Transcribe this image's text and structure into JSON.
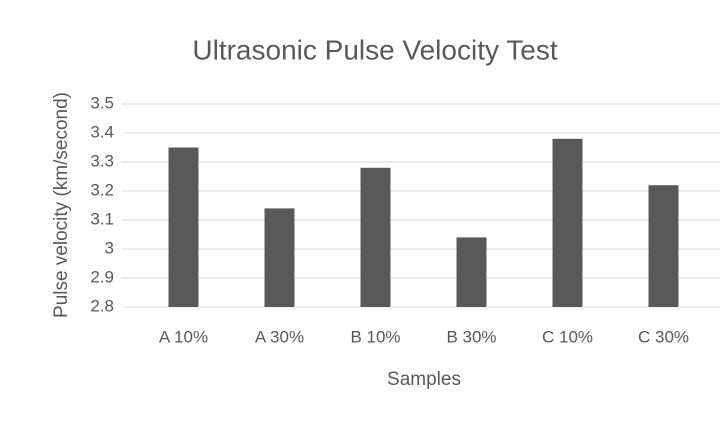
{
  "chart_data": {
    "type": "bar",
    "title": "Ultrasonic Pulse Velocity Test",
    "x_label": "Samples",
    "y_label": "Pulse velocity (km/second)",
    "categories": [
      "A 10%",
      "A 30%",
      "B 10%",
      "B 30%",
      "C 10%",
      "C 30%"
    ],
    "values": [
      3.35,
      3.14,
      3.28,
      3.04,
      3.38,
      3.22
    ],
    "color": "#595959",
    "ylim": [
      2.8,
      3.5
    ],
    "yticks": [
      2.8,
      2.9,
      3,
      3.1,
      3.2,
      3.3,
      3.4,
      3.5
    ],
    "grid": true
  }
}
